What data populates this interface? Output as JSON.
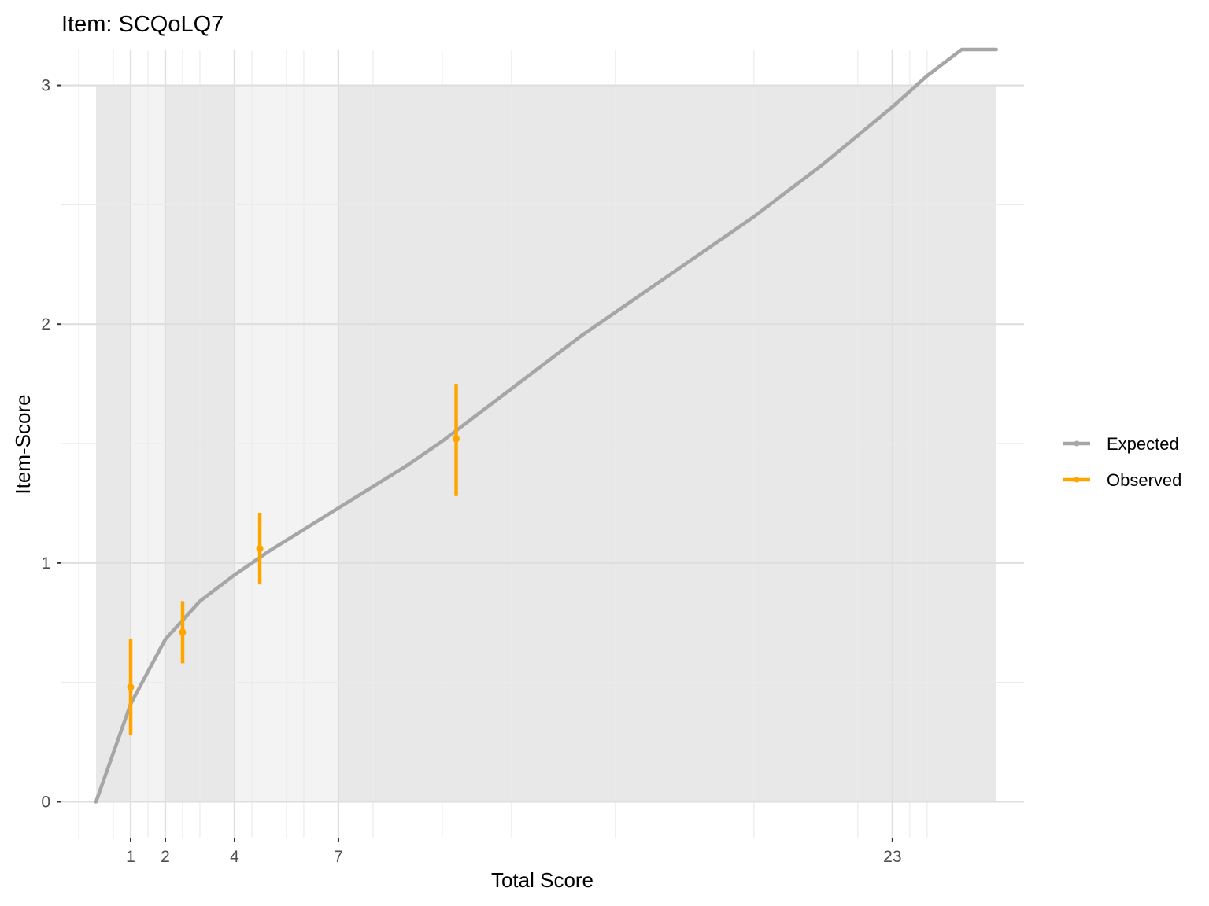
{
  "chart_data": {
    "type": "line",
    "title": "Item: SCQoLQ7",
    "xlabel": "Total Score",
    "ylabel": "Item-Score",
    "xlim": [
      -1,
      26.8
    ],
    "ylim": [
      -0.15,
      3.15
    ],
    "x_ticks": [
      1,
      2,
      4,
      7,
      23
    ],
    "y_ticks": [
      0,
      1,
      2,
      3
    ],
    "x_minor_gridlines": [
      -0.5,
      0.5,
      1.5,
      2.5,
      3,
      4.5,
      5.5,
      6,
      8,
      10,
      12,
      15,
      19,
      22,
      23.5,
      24
    ],
    "y_minor_gridlines": [
      0.5,
      1.5,
      2.5
    ],
    "grid": true,
    "legend_position": "right",
    "shaded_bands": [
      {
        "from": 0,
        "to": 1,
        "shade": "dark"
      },
      {
        "from": 1,
        "to": 2,
        "shade": "light"
      },
      {
        "from": 2,
        "to": 4,
        "shade": "dark"
      },
      {
        "from": 4,
        "to": 7,
        "shade": "light"
      },
      {
        "from": 7,
        "to": 26,
        "shade": "dark"
      }
    ],
    "series": [
      {
        "name": "Expected",
        "color": "#a6a6a6",
        "x": [
          0,
          1,
          2,
          3,
          4,
          5,
          6,
          7,
          8,
          9,
          10,
          11,
          12,
          13,
          14,
          15,
          16,
          17,
          18,
          19,
          20,
          21,
          22,
          23,
          24,
          25,
          26
        ],
        "y": [
          0,
          0.41,
          0.68,
          0.84,
          0.95,
          1.05,
          1.14,
          1.23,
          1.32,
          1.41,
          1.51,
          1.62,
          1.73,
          1.84,
          1.95,
          2.05,
          2.15,
          2.25,
          2.35,
          2.45,
          2.56,
          2.67,
          2.79,
          2.91,
          3.04,
          3.19,
          3.35
        ]
      },
      {
        "name": "Observed",
        "color": "#ffa500",
        "points": [
          {
            "x": 1,
            "y": 0.48,
            "lower": 0.28,
            "upper": 0.68
          },
          {
            "x": 2.5,
            "y": 0.71,
            "lower": 0.58,
            "upper": 0.84
          },
          {
            "x": 4.73,
            "y": 1.06,
            "lower": 0.91,
            "upper": 1.21
          },
          {
            "x": 10.4,
            "y": 1.52,
            "lower": 1.28,
            "upper": 1.75
          }
        ]
      }
    ]
  }
}
